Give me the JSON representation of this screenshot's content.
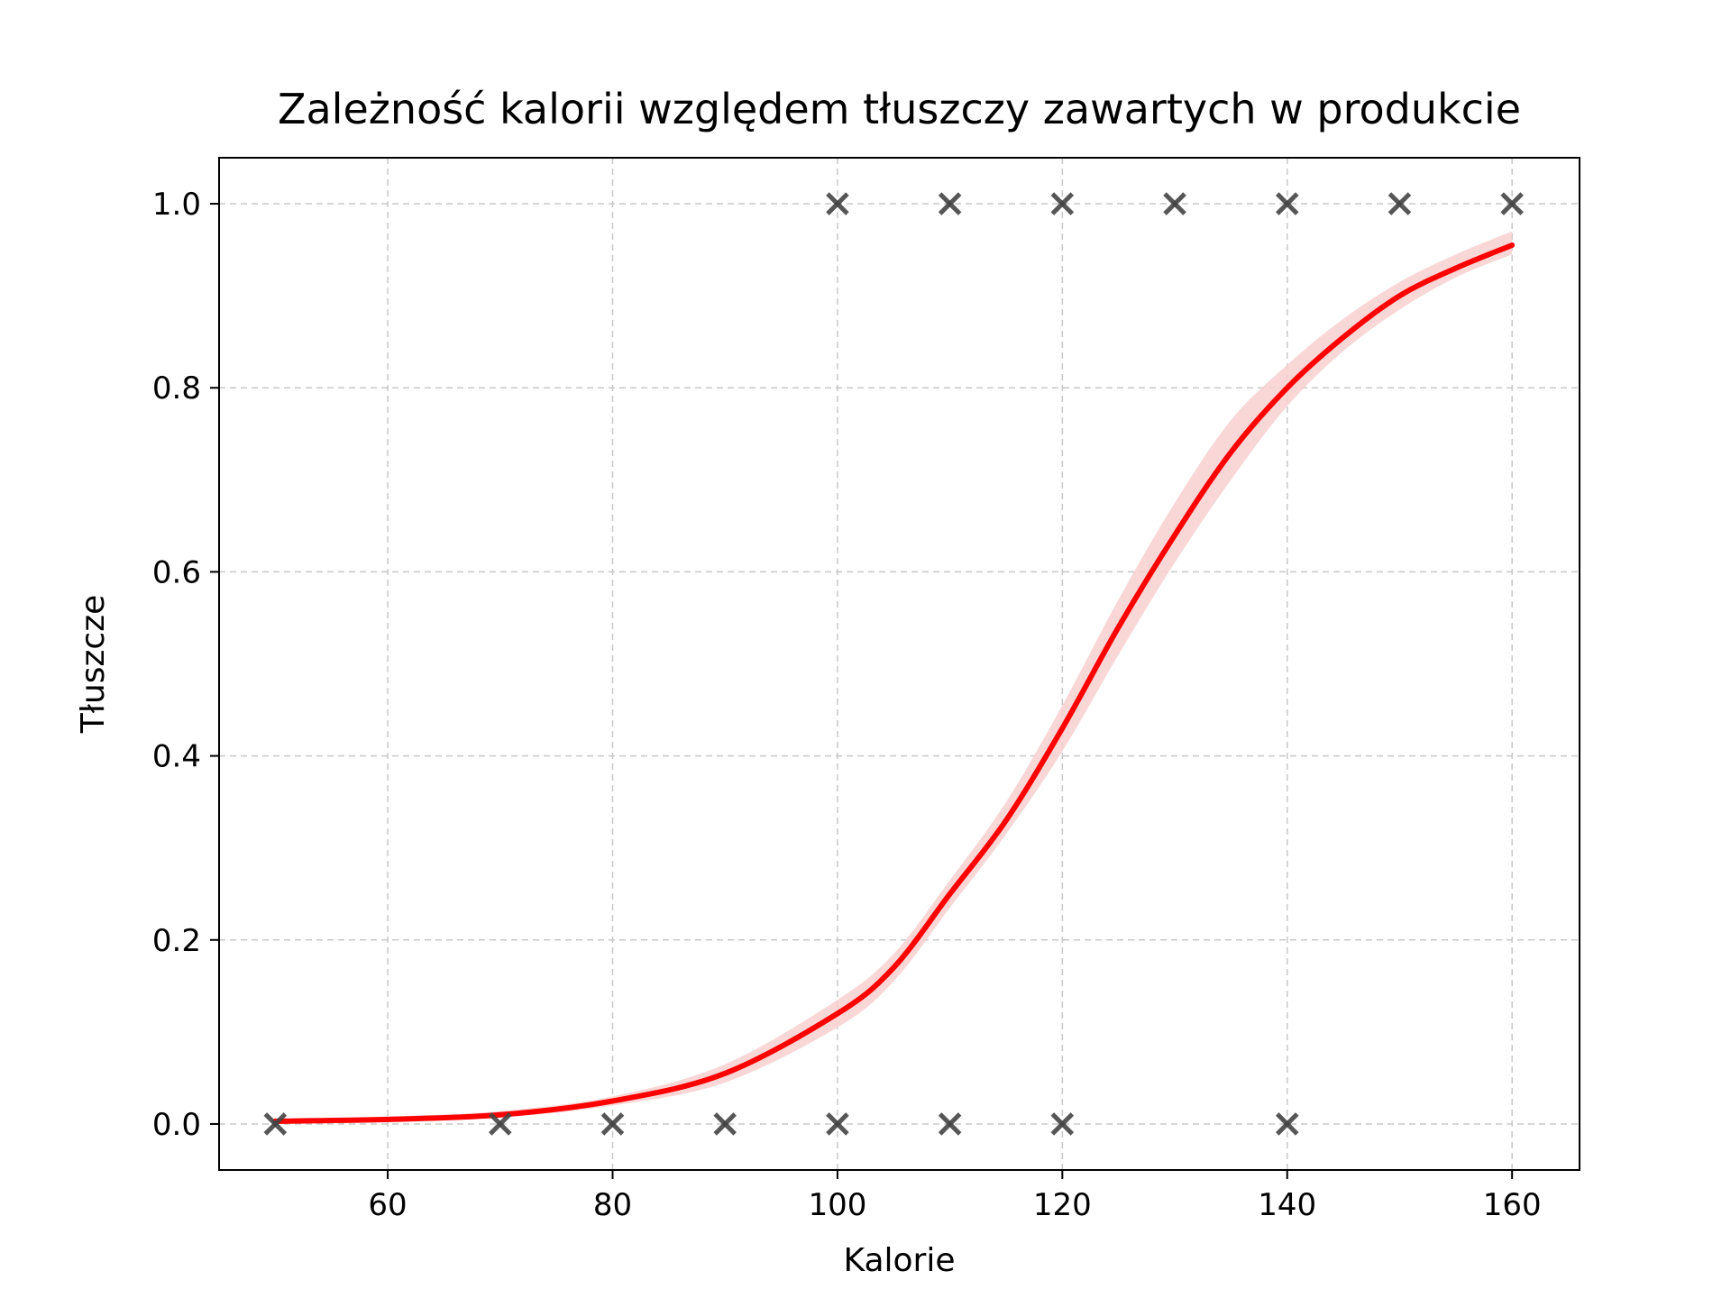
{
  "chart_data": {
    "type": "scatter",
    "title": "Zależność kalorii względem tłuszczy zawartych w produkcie",
    "xlabel": "Kalorie",
    "ylabel": "Tłuszcze",
    "xlim": [
      45,
      166
    ],
    "ylim": [
      -0.05,
      1.05
    ],
    "x_ticks": [
      60,
      80,
      100,
      120,
      140,
      160
    ],
    "y_ticks": [
      0.0,
      0.2,
      0.4,
      0.6,
      0.8,
      1.0
    ],
    "x_tick_labels": [
      "60",
      "80",
      "100",
      "120",
      "140",
      "160"
    ],
    "y_tick_labels": [
      "0.0",
      "0.2",
      "0.4",
      "0.6",
      "0.8",
      "1.0"
    ],
    "grid": true,
    "series": [
      {
        "type": "scatter",
        "marker": "x",
        "color": "#444444",
        "points": [
          {
            "x": 50,
            "y": 0
          },
          {
            "x": 70,
            "y": 0
          },
          {
            "x": 80,
            "y": 0
          },
          {
            "x": 90,
            "y": 0
          },
          {
            "x": 100,
            "y": 0
          },
          {
            "x": 110,
            "y": 0
          },
          {
            "x": 120,
            "y": 0
          },
          {
            "x": 140,
            "y": 0
          },
          {
            "x": 100,
            "y": 1
          },
          {
            "x": 110,
            "y": 1
          },
          {
            "x": 120,
            "y": 1
          },
          {
            "x": 130,
            "y": 1
          },
          {
            "x": 140,
            "y": 1
          },
          {
            "x": 150,
            "y": 1
          },
          {
            "x": 160,
            "y": 1
          }
        ]
      },
      {
        "type": "line",
        "color": "#ff0000",
        "x": [
          50,
          60,
          70,
          80,
          90,
          100,
          105,
          110,
          115,
          120,
          125,
          130,
          135,
          140,
          145,
          150,
          155,
          160
        ],
        "y": [
          0.003,
          0.005,
          0.01,
          0.025,
          0.055,
          0.12,
          0.17,
          0.25,
          0.33,
          0.43,
          0.54,
          0.64,
          0.73,
          0.8,
          0.855,
          0.9,
          0.93,
          0.955
        ]
      },
      {
        "type": "band",
        "color": "#f8d0d0",
        "x": [
          50,
          60,
          70,
          80,
          90,
          100,
          105,
          110,
          115,
          120,
          125,
          130,
          135,
          140,
          145,
          150,
          155,
          160
        ],
        "lower": [
          0.001,
          0.003,
          0.007,
          0.02,
          0.045,
          0.105,
          0.155,
          0.235,
          0.315,
          0.405,
          0.51,
          0.61,
          0.7,
          0.78,
          0.84,
          0.885,
          0.92,
          0.945
        ],
        "upper": [
          0.005,
          0.008,
          0.014,
          0.03,
          0.065,
          0.135,
          0.185,
          0.265,
          0.35,
          0.455,
          0.57,
          0.675,
          0.765,
          0.825,
          0.875,
          0.915,
          0.945,
          0.97
        ]
      }
    ]
  }
}
